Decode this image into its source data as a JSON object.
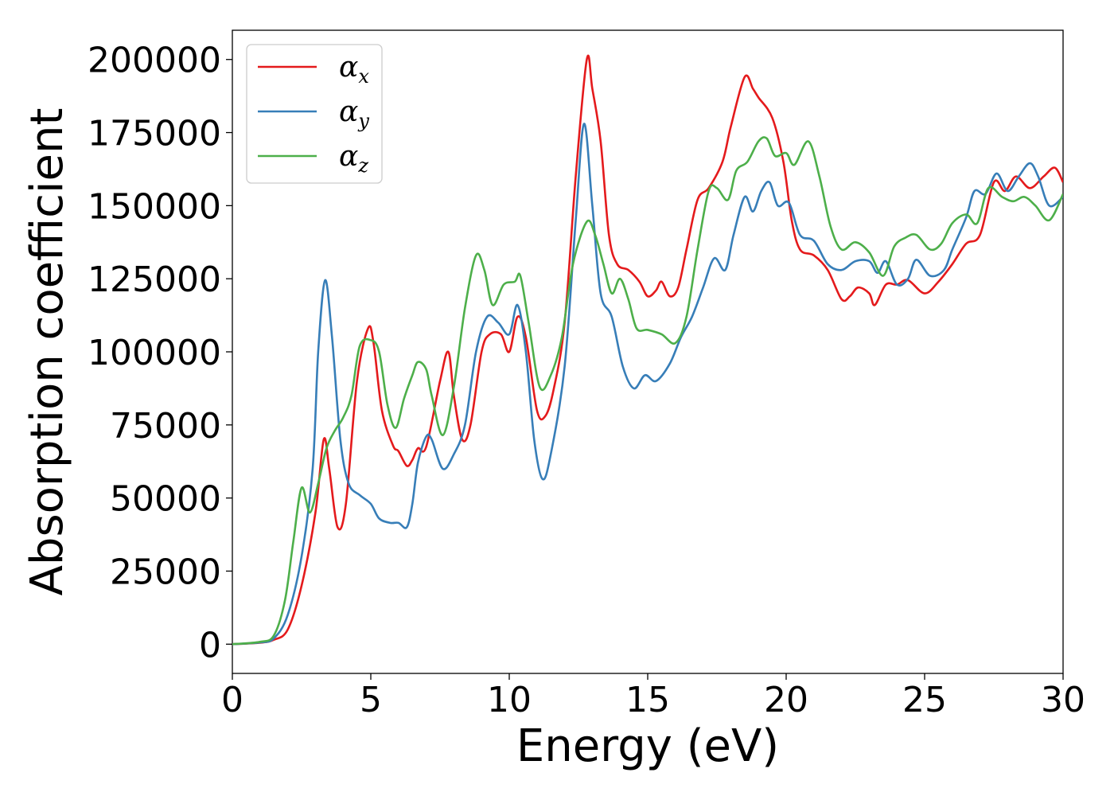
{
  "chart_data": {
    "type": "line",
    "xlabel": "Energy (eV)",
    "ylabel": "Absorption coefficient",
    "xlim": [
      0,
      30
    ],
    "ylim": [
      -10000,
      210000
    ],
    "xticks": [
      "0",
      "5",
      "10",
      "15",
      "20",
      "25",
      "30"
    ],
    "yticks": [
      "0",
      "25000",
      "50000",
      "75000",
      "100000",
      "125000",
      "150000",
      "175000",
      "200000"
    ],
    "grid": false,
    "legend_position": "top-left",
    "series": [
      {
        "name": "α_x",
        "legend_base": "α",
        "legend_sub": "x",
        "color": "#e41a1c",
        "points": [
          [
            0,
            0
          ],
          [
            1,
            500
          ],
          [
            1.5,
            1500
          ],
          [
            2,
            5000
          ],
          [
            2.5,
            20000
          ],
          [
            3.0,
            45000
          ],
          [
            3.3,
            70000
          ],
          [
            3.5,
            60000
          ],
          [
            3.8,
            40000
          ],
          [
            4.1,
            48000
          ],
          [
            4.5,
            90000
          ],
          [
            4.9,
            108000
          ],
          [
            5.1,
            103000
          ],
          [
            5.4,
            80000
          ],
          [
            5.8,
            68000
          ],
          [
            6.0,
            66000
          ],
          [
            6.3,
            61000
          ],
          [
            6.5,
            63000
          ],
          [
            6.7,
            67000
          ],
          [
            7.0,
            67500
          ],
          [
            7.5,
            90000
          ],
          [
            7.8,
            100000
          ],
          [
            8.0,
            85000
          ],
          [
            8.3,
            70000
          ],
          [
            8.6,
            75000
          ],
          [
            9.0,
            100000
          ],
          [
            9.3,
            106000
          ],
          [
            9.7,
            106000
          ],
          [
            10.0,
            100000
          ],
          [
            10.3,
            112000
          ],
          [
            10.6,
            105000
          ],
          [
            11.0,
            80000
          ],
          [
            11.3,
            78000
          ],
          [
            11.6,
            87000
          ],
          [
            12.0,
            110000
          ],
          [
            12.4,
            160000
          ],
          [
            12.8,
            200000
          ],
          [
            13.0,
            190000
          ],
          [
            13.3,
            172000
          ],
          [
            13.6,
            140000
          ],
          [
            13.9,
            130000
          ],
          [
            14.3,
            128000
          ],
          [
            14.7,
            124000
          ],
          [
            15.0,
            119000
          ],
          [
            15.3,
            121000
          ],
          [
            15.5,
            124000
          ],
          [
            15.8,
            119000
          ],
          [
            16.1,
            122000
          ],
          [
            16.4,
            135000
          ],
          [
            16.8,
            152000
          ],
          [
            17.2,
            156000
          ],
          [
            17.7,
            165000
          ],
          [
            18.0,
            177000
          ],
          [
            18.5,
            194000
          ],
          [
            18.8,
            190000
          ],
          [
            19.0,
            187000
          ],
          [
            19.5,
            180000
          ],
          [
            19.9,
            165000
          ],
          [
            20.2,
            145000
          ],
          [
            20.5,
            135000
          ],
          [
            21.0,
            133000
          ],
          [
            21.5,
            128000
          ],
          [
            22.0,
            118000
          ],
          [
            22.3,
            119000
          ],
          [
            22.6,
            122000
          ],
          [
            23.0,
            120000
          ],
          [
            23.2,
            116000
          ],
          [
            23.6,
            123000
          ],
          [
            24.0,
            123000
          ],
          [
            24.4,
            124500
          ],
          [
            25.0,
            120000
          ],
          [
            25.5,
            124000
          ],
          [
            26.0,
            130000
          ],
          [
            26.5,
            137000
          ],
          [
            27.0,
            140000
          ],
          [
            27.5,
            158000
          ],
          [
            27.9,
            155000
          ],
          [
            28.3,
            160000
          ],
          [
            28.8,
            156000
          ],
          [
            29.3,
            160000
          ],
          [
            29.7,
            163000
          ],
          [
            30,
            158000
          ]
        ]
      },
      {
        "name": "α_y",
        "legend_base": "α",
        "legend_sub": "y",
        "color": "#377eb8",
        "points": [
          [
            0,
            0
          ],
          [
            1,
            600
          ],
          [
            1.5,
            2000
          ],
          [
            2,
            10000
          ],
          [
            2.5,
            30000
          ],
          [
            2.9,
            60000
          ],
          [
            3.1,
            100000
          ],
          [
            3.35,
            124500
          ],
          [
            3.6,
            105000
          ],
          [
            3.9,
            70000
          ],
          [
            4.2,
            55000
          ],
          [
            4.6,
            51000
          ],
          [
            5.0,
            48000
          ],
          [
            5.3,
            43000
          ],
          [
            5.7,
            41500
          ],
          [
            6.0,
            41500
          ],
          [
            6.3,
            40000
          ],
          [
            6.5,
            48000
          ],
          [
            6.7,
            62000
          ],
          [
            7.0,
            71000
          ],
          [
            7.2,
            70000
          ],
          [
            7.6,
            60000
          ],
          [
            8.0,
            65000
          ],
          [
            8.4,
            75000
          ],
          [
            8.8,
            100000
          ],
          [
            9.2,
            112000
          ],
          [
            9.6,
            110000
          ],
          [
            10.0,
            106000
          ],
          [
            10.3,
            116000
          ],
          [
            10.6,
            100000
          ],
          [
            10.9,
            70000
          ],
          [
            11.2,
            56500
          ],
          [
            11.5,
            65000
          ],
          [
            12.0,
            95000
          ],
          [
            12.4,
            145000
          ],
          [
            12.7,
            178000
          ],
          [
            13.0,
            150000
          ],
          [
            13.3,
            120000
          ],
          [
            13.7,
            112000
          ],
          [
            14.1,
            95000
          ],
          [
            14.5,
            87500
          ],
          [
            14.9,
            92000
          ],
          [
            15.3,
            90000
          ],
          [
            15.8,
            96000
          ],
          [
            16.2,
            105000
          ],
          [
            16.6,
            112000
          ],
          [
            17.0,
            122000
          ],
          [
            17.4,
            132000
          ],
          [
            17.8,
            128000
          ],
          [
            18.1,
            140000
          ],
          [
            18.5,
            153000
          ],
          [
            18.8,
            148000
          ],
          [
            19.1,
            155000
          ],
          [
            19.4,
            158000
          ],
          [
            19.7,
            150000
          ],
          [
            20.1,
            151000
          ],
          [
            20.5,
            140000
          ],
          [
            21.0,
            138000
          ],
          [
            21.5,
            130000
          ],
          [
            22.0,
            128000
          ],
          [
            22.5,
            131000
          ],
          [
            23.0,
            131000
          ],
          [
            23.3,
            127000
          ],
          [
            23.6,
            131000
          ],
          [
            24.0,
            123000
          ],
          [
            24.4,
            125000
          ],
          [
            24.7,
            131500
          ],
          [
            25.2,
            126000
          ],
          [
            25.7,
            128000
          ],
          [
            26.0,
            135000
          ],
          [
            26.5,
            146000
          ],
          [
            26.8,
            155000
          ],
          [
            27.2,
            154000
          ],
          [
            27.6,
            161000
          ],
          [
            28.0,
            155000
          ],
          [
            28.4,
            160000
          ],
          [
            28.8,
            164500
          ],
          [
            29.1,
            160000
          ],
          [
            29.5,
            150000
          ],
          [
            30,
            153000
          ]
        ]
      },
      {
        "name": "α_z",
        "legend_base": "α",
        "legend_sub": "z",
        "color": "#4daf4a",
        "points": [
          [
            0,
            0
          ],
          [
            1,
            800
          ],
          [
            1.5,
            3000
          ],
          [
            1.9,
            15000
          ],
          [
            2.2,
            35000
          ],
          [
            2.5,
            53500
          ],
          [
            2.8,
            45000
          ],
          [
            3.1,
            55000
          ],
          [
            3.4,
            67000
          ],
          [
            3.7,
            73000
          ],
          [
            4.0,
            77500
          ],
          [
            4.3,
            85000
          ],
          [
            4.6,
            102000
          ],
          [
            5.0,
            104000
          ],
          [
            5.3,
            100000
          ],
          [
            5.6,
            82000
          ],
          [
            5.9,
            74000
          ],
          [
            6.2,
            84000
          ],
          [
            6.5,
            92000
          ],
          [
            6.7,
            96500
          ],
          [
            7.0,
            94000
          ],
          [
            7.2,
            85000
          ],
          [
            7.6,
            71500
          ],
          [
            8.0,
            88000
          ],
          [
            8.4,
            115000
          ],
          [
            8.8,
            133000
          ],
          [
            9.1,
            128000
          ],
          [
            9.4,
            116000
          ],
          [
            9.8,
            123000
          ],
          [
            10.2,
            124000
          ],
          [
            10.4,
            126000
          ],
          [
            10.7,
            110000
          ],
          [
            11.1,
            88000
          ],
          [
            11.5,
            92000
          ],
          [
            11.9,
            105000
          ],
          [
            12.3,
            130000
          ],
          [
            12.8,
            144500
          ],
          [
            13.1,
            140000
          ],
          [
            13.4,
            130000
          ],
          [
            13.7,
            120000
          ],
          [
            14.0,
            125000
          ],
          [
            14.3,
            118000
          ],
          [
            14.6,
            108000
          ],
          [
            15.0,
            107500
          ],
          [
            15.5,
            106000
          ],
          [
            16.0,
            103000
          ],
          [
            16.4,
            112000
          ],
          [
            16.8,
            135000
          ],
          [
            17.2,
            155000
          ],
          [
            17.5,
            156000
          ],
          [
            17.9,
            152000
          ],
          [
            18.2,
            162000
          ],
          [
            18.6,
            165000
          ],
          [
            19.0,
            172000
          ],
          [
            19.3,
            173000
          ],
          [
            19.6,
            167000
          ],
          [
            20.0,
            168000
          ],
          [
            20.3,
            164000
          ],
          [
            20.8,
            172000
          ],
          [
            21.2,
            160000
          ],
          [
            21.6,
            143000
          ],
          [
            22.0,
            135000
          ],
          [
            22.5,
            137500
          ],
          [
            23.0,
            134000
          ],
          [
            23.5,
            126000
          ],
          [
            23.9,
            136000
          ],
          [
            24.3,
            139000
          ],
          [
            24.7,
            140000
          ],
          [
            25.2,
            135000
          ],
          [
            25.6,
            137000
          ],
          [
            26.0,
            144000
          ],
          [
            26.5,
            147000
          ],
          [
            26.9,
            144000
          ],
          [
            27.3,
            156000
          ],
          [
            27.8,
            153000
          ],
          [
            28.2,
            151500
          ],
          [
            28.6,
            153000
          ],
          [
            29.0,
            150000
          ],
          [
            29.5,
            145000
          ],
          [
            30,
            154000
          ]
        ]
      }
    ]
  }
}
